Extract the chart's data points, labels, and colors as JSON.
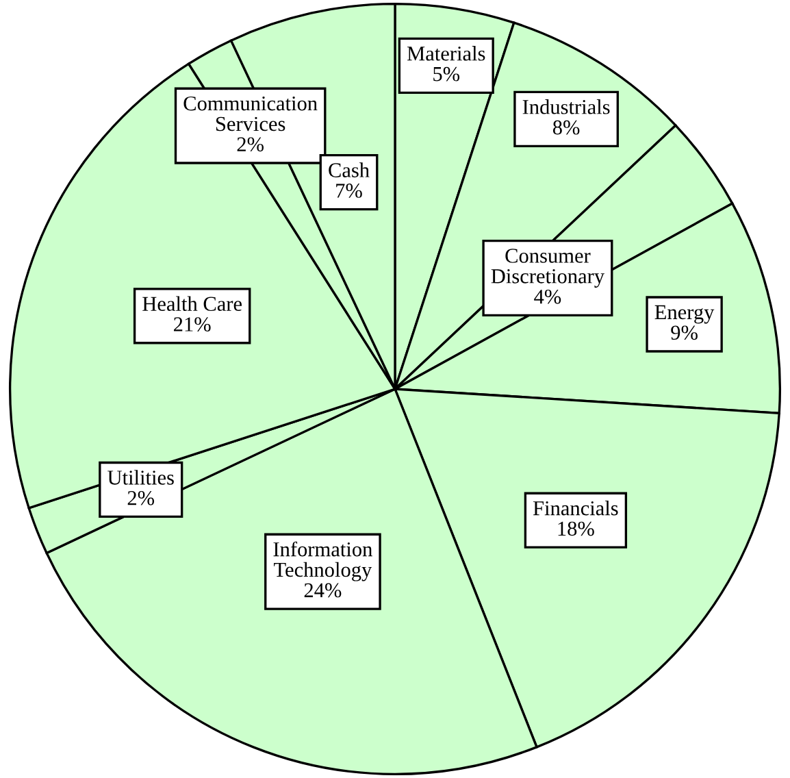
{
  "chart_data": {
    "type": "pie",
    "categories": [
      "Materials",
      "Industrials",
      "Consumer Discretionary",
      "Energy",
      "Financials",
      "Information Technology",
      "Utilities",
      "Health Care",
      "Communication Services",
      "Cash"
    ],
    "values": [
      5,
      8,
      4,
      9,
      18,
      24,
      2,
      21,
      2,
      7
    ],
    "colors": [
      "#ccffcc",
      "#ccffcc",
      "#ccffcc",
      "#ccffcc",
      "#ccffcc",
      "#ccffcc",
      "#ccffcc",
      "#ccffcc",
      "#ccffcc",
      "#ccffcc"
    ],
    "value_labels": [
      "5%",
      "8%",
      "4%",
      "9%",
      "18%",
      "24%",
      "2%",
      "21%",
      "2%",
      "7%"
    ]
  }
}
